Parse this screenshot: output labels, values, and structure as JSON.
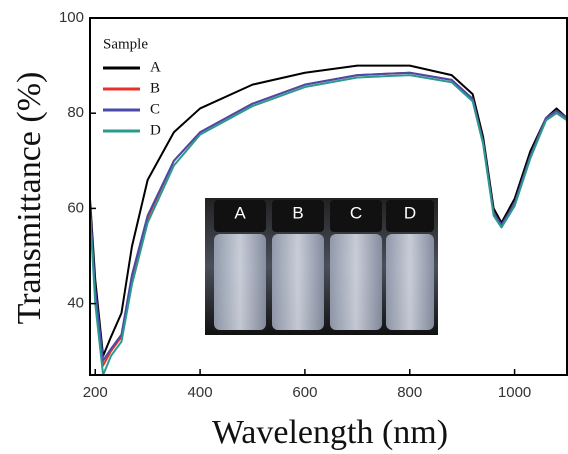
{
  "chart_data": {
    "type": "line",
    "xlabel": "Wavelength (nm)",
    "ylabel": "Transmittance (%)",
    "legend_title": "Sample",
    "legend": "upper left",
    "x": [
      190,
      200,
      215,
      230,
      250,
      270,
      300,
      350,
      400,
      500,
      600,
      700,
      800,
      880,
      920,
      940,
      960,
      975,
      1000,
      1030,
      1060,
      1080,
      1100
    ],
    "series": [
      {
        "name": "A",
        "color": "#000000",
        "values": [
          62,
          45,
          29,
          33,
          38,
          52,
          66,
          76,
          81,
          86,
          88.5,
          90,
          90,
          88,
          84,
          75,
          60,
          57,
          62,
          72,
          79,
          81,
          79
        ]
      },
      {
        "name": "B",
        "color": "#e8302a",
        "values": [
          60,
          42,
          27,
          30,
          33,
          45,
          58,
          70,
          76,
          82,
          86,
          88,
          88.5,
          87,
          83,
          74,
          59,
          56.5,
          61,
          71,
          79,
          80.5,
          79
        ]
      },
      {
        "name": "C",
        "color": "#4a4aa8",
        "values": [
          60,
          43,
          28,
          30.5,
          33.5,
          46,
          58.5,
          70,
          76,
          82,
          86,
          88,
          88.5,
          87,
          83,
          74,
          59,
          56.5,
          61,
          71,
          79,
          80.5,
          79
        ]
      },
      {
        "name": "D",
        "color": "#2a9a90",
        "values": [
          59,
          40,
          25,
          29,
          32,
          44,
          57,
          69,
          75.5,
          81.5,
          85.5,
          87.5,
          88,
          86.5,
          82.5,
          73.5,
          58.5,
          56,
          60.5,
          70.5,
          78.5,
          80,
          78.5
        ]
      }
    ],
    "xlim": [
      190,
      1100
    ],
    "xticks": [
      200,
      400,
      600,
      800,
      1000
    ],
    "ylim": [
      25,
      100
    ],
    "yticks": [
      40,
      60,
      80,
      100
    ],
    "inset_labels": [
      "A",
      "B",
      "C",
      "D"
    ]
  }
}
